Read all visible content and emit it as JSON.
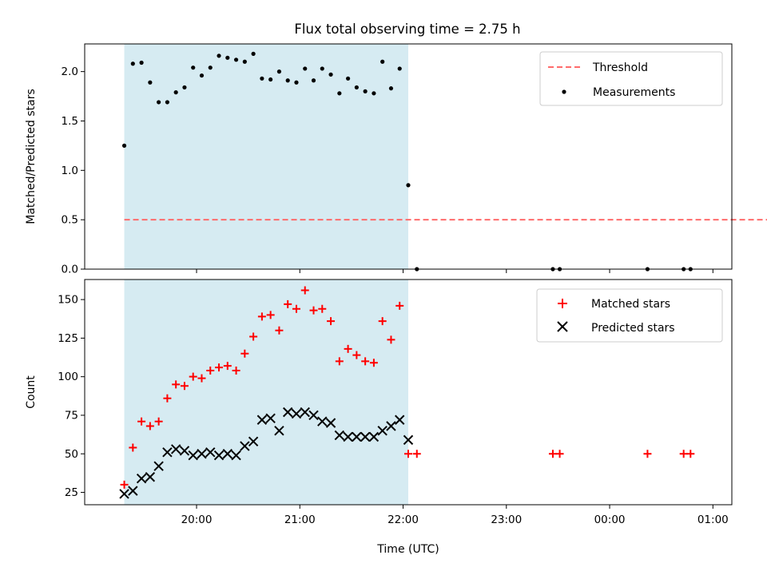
{
  "title": "Flux total observing time = 2.75 h",
  "chart_data": [
    {
      "type": "scatter",
      "panel": "top",
      "ylabel": "Matched/Predicted stars",
      "xlabel": "",
      "ylim": [
        0,
        2.28
      ],
      "y_ticks": [
        0.0,
        0.5,
        1.0,
        1.5,
        2.0
      ],
      "y_tick_labels": [
        "0.0",
        "0.5",
        "1.0",
        "1.5",
        "2.0"
      ],
      "grid": false,
      "legend_position": "top-right",
      "shaded_interval": {
        "start": "19:18",
        "end": "22:03",
        "color": "#add8e6"
      },
      "threshold": {
        "name": "Threshold",
        "value": 0.5,
        "x_range": [
          "19:18",
          "01:47"
        ],
        "color": "#ff6b6b",
        "style": "dashed"
      },
      "series": [
        {
          "name": "Measurements",
          "marker": "dot",
          "color": "#000000",
          "points": [
            [
              "19:18",
              1.25
            ],
            [
              "19:23",
              2.08
            ],
            [
              "19:28",
              2.09
            ],
            [
              "19:33",
              1.89
            ],
            [
              "19:38",
              1.69
            ],
            [
              "19:43",
              1.69
            ],
            [
              "19:48",
              1.79
            ],
            [
              "19:53",
              1.84
            ],
            [
              "19:58",
              2.04
            ],
            [
              "20:03",
              1.96
            ],
            [
              "20:08",
              2.04
            ],
            [
              "20:13",
              2.16
            ],
            [
              "20:18",
              2.14
            ],
            [
              "20:23",
              2.12
            ],
            [
              "20:28",
              2.1
            ],
            [
              "20:33",
              2.18
            ],
            [
              "20:38",
              1.93
            ],
            [
              "20:43",
              1.92
            ],
            [
              "20:48",
              2.0
            ],
            [
              "20:53",
              1.91
            ],
            [
              "20:58",
              1.89
            ],
            [
              "21:03",
              2.03
            ],
            [
              "21:08",
              1.91
            ],
            [
              "21:13",
              2.03
            ],
            [
              "21:18",
              1.97
            ],
            [
              "21:23",
              1.78
            ],
            [
              "21:28",
              1.93
            ],
            [
              "21:33",
              1.84
            ],
            [
              "21:38",
              1.8
            ],
            [
              "21:43",
              1.78
            ],
            [
              "21:48",
              2.1
            ],
            [
              "21:53",
              1.83
            ],
            [
              "21:58",
              2.03
            ],
            [
              "22:03",
              0.85
            ],
            [
              "22:08",
              0.0
            ],
            [
              "23:27",
              0.0
            ],
            [
              "23:31",
              0.0
            ],
            [
              "00:22",
              0.0
            ],
            [
              "00:43",
              0.0
            ],
            [
              "00:47",
              0.0
            ]
          ]
        }
      ]
    },
    {
      "type": "scatter",
      "panel": "bottom",
      "ylabel": "Count",
      "xlabel": "Time (UTC)",
      "ylim": [
        17,
        163
      ],
      "y_ticks": [
        25,
        50,
        75,
        100,
        125,
        150
      ],
      "y_tick_labels": [
        "25",
        "50",
        "75",
        "100",
        "125",
        "150"
      ],
      "x_ticks": [
        "20:00",
        "21:00",
        "22:00",
        "23:00",
        "00:00",
        "01:00"
      ],
      "grid": false,
      "legend_position": "top-right",
      "shaded_interval": {
        "start": "19:18",
        "end": "22:03",
        "color": "#add8e6"
      },
      "series": [
        {
          "name": "Matched stars",
          "marker": "plus",
          "color": "#ff0000",
          "points": [
            [
              "19:18",
              30
            ],
            [
              "19:23",
              54
            ],
            [
              "19:28",
              71
            ],
            [
              "19:33",
              68
            ],
            [
              "19:38",
              71
            ],
            [
              "19:43",
              86
            ],
            [
              "19:48",
              95
            ],
            [
              "19:53",
              94
            ],
            [
              "19:58",
              100
            ],
            [
              "20:03",
              99
            ],
            [
              "20:08",
              104
            ],
            [
              "20:13",
              106
            ],
            [
              "20:18",
              107
            ],
            [
              "20:23",
              104
            ],
            [
              "20:28",
              115
            ],
            [
              "20:33",
              126
            ],
            [
              "20:38",
              139
            ],
            [
              "20:43",
              140
            ],
            [
              "20:48",
              130
            ],
            [
              "20:53",
              147
            ],
            [
              "20:58",
              144
            ],
            [
              "21:03",
              156
            ],
            [
              "21:08",
              143
            ],
            [
              "21:13",
              144
            ],
            [
              "21:18",
              136
            ],
            [
              "21:23",
              110
            ],
            [
              "21:28",
              118
            ],
            [
              "21:33",
              114
            ],
            [
              "21:38",
              110
            ],
            [
              "21:43",
              109
            ],
            [
              "21:48",
              136
            ],
            [
              "21:53",
              124
            ],
            [
              "21:58",
              146
            ],
            [
              "22:03",
              50
            ],
            [
              "22:08",
              50
            ],
            [
              "23:27",
              50
            ],
            [
              "23:31",
              50
            ],
            [
              "00:22",
              50
            ],
            [
              "00:43",
              50
            ],
            [
              "00:47",
              50
            ]
          ]
        },
        {
          "name": "Predicted stars",
          "marker": "x",
          "color": "#000000",
          "points": [
            [
              "19:18",
              24
            ],
            [
              "19:23",
              26
            ],
            [
              "19:28",
              34
            ],
            [
              "19:33",
              35
            ],
            [
              "19:38",
              42
            ],
            [
              "19:43",
              51
            ],
            [
              "19:48",
              53
            ],
            [
              "19:53",
              52
            ],
            [
              "19:58",
              49
            ],
            [
              "20:03",
              50
            ],
            [
              "20:08",
              51
            ],
            [
              "20:13",
              49
            ],
            [
              "20:18",
              50
            ],
            [
              "20:23",
              49
            ],
            [
              "20:28",
              55
            ],
            [
              "20:33",
              58
            ],
            [
              "20:38",
              72
            ],
            [
              "20:43",
              73
            ],
            [
              "20:48",
              65
            ],
            [
              "20:53",
              77
            ],
            [
              "20:58",
              76
            ],
            [
              "21:03",
              77
            ],
            [
              "21:08",
              75
            ],
            [
              "21:13",
              71
            ],
            [
              "21:18",
              70
            ],
            [
              "21:23",
              62
            ],
            [
              "21:28",
              61
            ],
            [
              "21:33",
              61
            ],
            [
              "21:38",
              61
            ],
            [
              "21:43",
              61
            ],
            [
              "21:48",
              65
            ],
            [
              "21:53",
              68
            ],
            [
              "21:58",
              72
            ],
            [
              "22:03",
              59
            ]
          ]
        }
      ]
    }
  ]
}
